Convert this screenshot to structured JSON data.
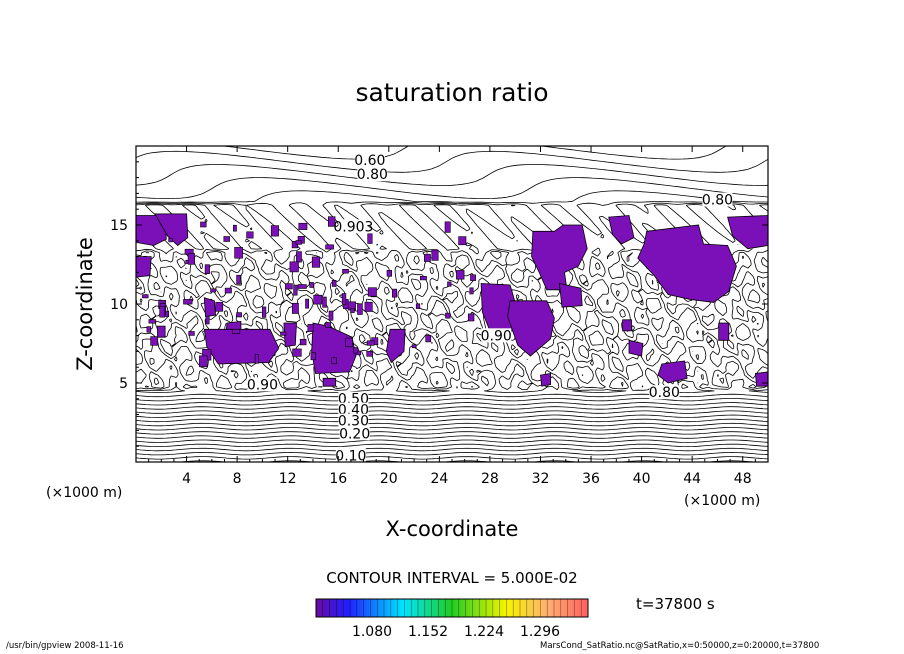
{
  "chart_data": {
    "type": "contour",
    "title": "saturation ratio",
    "xlabel": "X-coordinate",
    "ylabel": "Z-coordinate",
    "x_unit": "(×1000 m)",
    "y_unit": "(×1000 m)",
    "xlim": [
      0,
      50
    ],
    "ylim": [
      0,
      20
    ],
    "x_ticks": [
      4,
      8,
      12,
      16,
      20,
      24,
      28,
      32,
      36,
      40,
      44,
      48
    ],
    "y_ticks": [
      5,
      10,
      15
    ],
    "contour_interval_label": "CONTOUR INTERVAL = 5.000E-02",
    "contour_labels": [
      "0.60",
      "0.80",
      "0.80",
      "0.903",
      "0.90",
      "0.90",
      "0.80",
      "0.50",
      "0.40",
      "0.30",
      "0.20",
      "0.10"
    ],
    "shading_threshold": 1.0,
    "shading_color": "#7b10b8",
    "colorbar": {
      "ticks": [
        "1.080",
        "1.152",
        "1.224",
        "1.296"
      ],
      "colors": [
        "#7a0a9c",
        "#00ffff",
        "#2bd12b",
        "#ffff00",
        "#ff6a6a"
      ]
    }
  },
  "time_label": "t=37800 s",
  "footer_left": "/usr/bin/gpview   2008-11-16",
  "footer_right": "MarsCond_SatRatio.nc@SatRatio,x=0:50000,z=0:20000,t=37800"
}
